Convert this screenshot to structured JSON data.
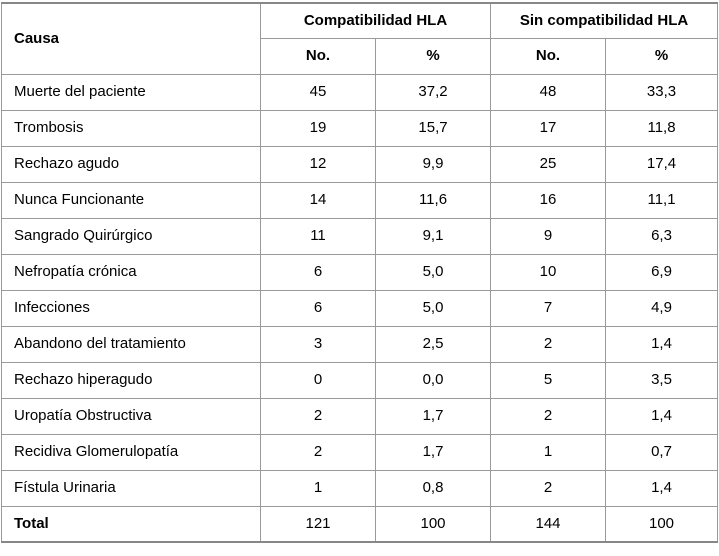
{
  "chart_data": {
    "type": "table",
    "header": {
      "row_label_column": "Causa",
      "groups": [
        {
          "label": "Compatibilidad HLA",
          "subcolumns": [
            "No.",
            "%"
          ]
        },
        {
          "label": "Sin compatibilidad HLA",
          "subcolumns": [
            "No.",
            "%"
          ]
        }
      ]
    },
    "rows": [
      {
        "causa": "Muerte del paciente",
        "values": [
          "45",
          "37,2",
          "48",
          "33,3"
        ],
        "bold": false
      },
      {
        "causa": "Trombosis",
        "values": [
          "19",
          "15,7",
          "17",
          "11,8"
        ],
        "bold": false
      },
      {
        "causa": "Rechazo agudo",
        "values": [
          "12",
          "9,9",
          "25",
          "17,4"
        ],
        "bold": false
      },
      {
        "causa": "Nunca Funcionante",
        "values": [
          "14",
          "11,6",
          "16",
          "11,1"
        ],
        "bold": false
      },
      {
        "causa": "Sangrado Quirúrgico",
        "values": [
          "11",
          "9,1",
          "9",
          "6,3"
        ],
        "bold": false
      },
      {
        "causa": "Nefropatía crónica",
        "values": [
          "6",
          "5,0",
          "10",
          "6,9"
        ],
        "bold": false
      },
      {
        "causa": "Infecciones",
        "values": [
          "6",
          "5,0",
          "7",
          "4,9"
        ],
        "bold": false
      },
      {
        "causa": "Abandono del tratamiento",
        "values": [
          "3",
          "2,5",
          "2",
          "1,4"
        ],
        "bold": false
      },
      {
        "causa": "Rechazo hiperagudo",
        "values": [
          "0",
          "0,0",
          "5",
          "3,5"
        ],
        "bold": false
      },
      {
        "causa": "Uropatía Obstructiva",
        "values": [
          "2",
          "1,7",
          "2",
          "1,4"
        ],
        "bold": false
      },
      {
        "causa": "Recidiva Glomerulopatía",
        "values": [
          "2",
          "1,7",
          "1",
          "0,7"
        ],
        "bold": false
      },
      {
        "causa": "Fístula Urinaria",
        "values": [
          "1",
          "0,8",
          "2",
          "1,4"
        ],
        "bold": false
      },
      {
        "causa": "Total",
        "values": [
          "121",
          "100",
          "144",
          "100"
        ],
        "bold": true
      }
    ],
    "colors": {
      "border_interior": "#9a9a9a",
      "border_outer": "#878787",
      "text": "#000000",
      "background": "#ffffff"
    }
  }
}
